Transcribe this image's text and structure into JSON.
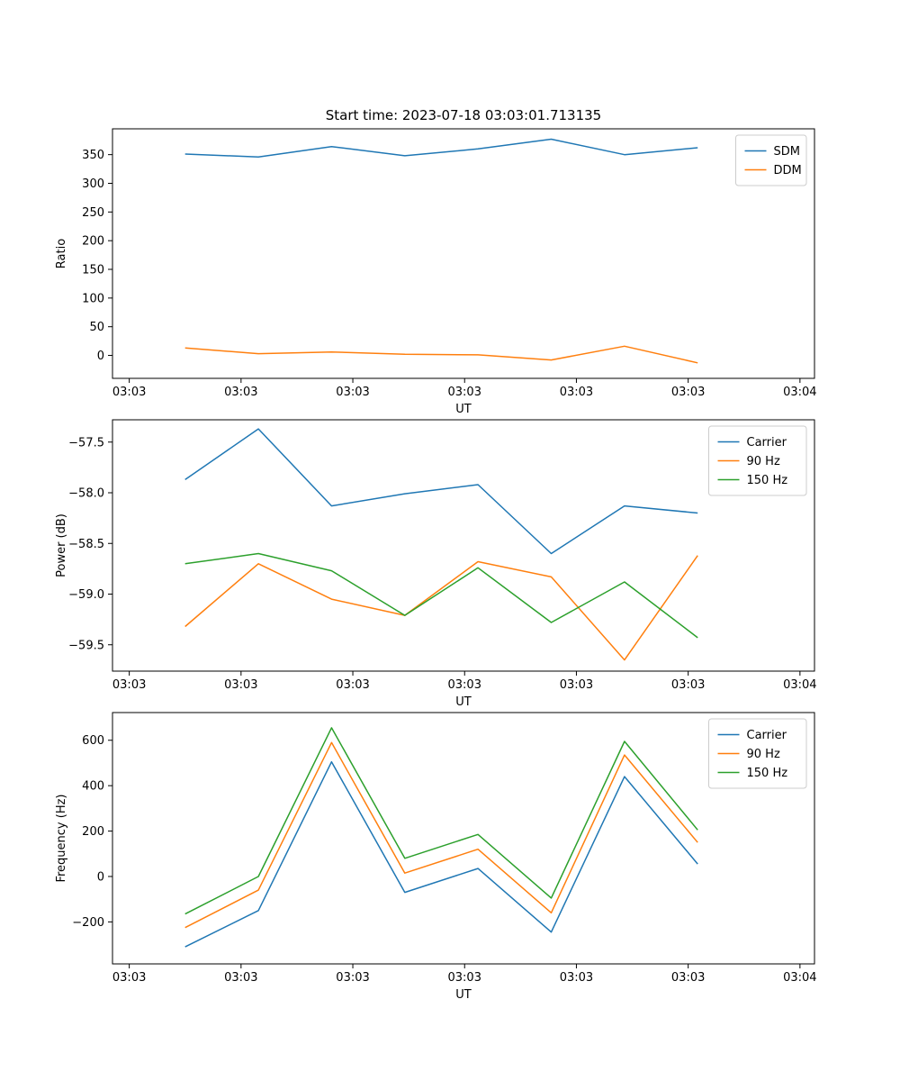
{
  "figure": {
    "background": "#ffffff"
  },
  "colors": {
    "blue": "#1f77b4",
    "orange": "#ff7f0e",
    "green": "#2ca02c",
    "axis": "#000000",
    "legend_border": "#cccccc"
  },
  "chart_data": [
    {
      "type": "line",
      "title": "Start time: 2023-07-18 03:03:01.713135",
      "xlabel": "UT",
      "ylabel": "Ratio",
      "xlim": [
        -1.5,
        61.3
      ],
      "ylim": [
        -40,
        395
      ],
      "xticks": [
        0,
        10,
        20,
        30,
        40,
        50,
        60
      ],
      "xticklabels": [
        "03:03",
        "03:03",
        "03:03",
        "03:03",
        "03:03",
        "03:03",
        "03:04"
      ],
      "yticks": [
        0,
        50,
        100,
        150,
        200,
        250,
        300,
        350
      ],
      "yticklabels": [
        "0",
        "50",
        "100",
        "150",
        "200",
        "250",
        "300",
        "350"
      ],
      "x": [
        5.0,
        11.55,
        18.1,
        24.65,
        31.2,
        37.75,
        44.3,
        50.85
      ],
      "series": [
        {
          "name": "SDM",
          "color": "#1f77b4",
          "values": [
            351,
            346,
            364,
            348,
            360,
            377,
            350,
            362
          ]
        },
        {
          "name": "DDM",
          "color": "#ff7f0e",
          "values": [
            13,
            3,
            6,
            2,
            1,
            -8,
            16,
            -13
          ]
        }
      ],
      "legend": {
        "position": "upper right",
        "labels": [
          "SDM",
          "DDM"
        ]
      },
      "grid": false
    },
    {
      "type": "line",
      "title": "",
      "xlabel": "UT",
      "ylabel": "Power (dB)",
      "xlim": [
        -1.5,
        61.3
      ],
      "ylim": [
        -59.76,
        -57.28
      ],
      "xticks": [
        0,
        10,
        20,
        30,
        40,
        50,
        60
      ],
      "xticklabels": [
        "03:03",
        "03:03",
        "03:03",
        "03:03",
        "03:03",
        "03:03",
        "03:04"
      ],
      "yticks": [
        -57.5,
        -58.0,
        -58.5,
        -59.0,
        -59.5
      ],
      "yticklabels": [
        "−57.5",
        "−58.0",
        "−58.5",
        "−59.0",
        "−59.5"
      ],
      "x": [
        5.0,
        11.55,
        18.1,
        24.65,
        31.2,
        37.75,
        44.3,
        50.85
      ],
      "series": [
        {
          "name": "Carrier",
          "color": "#1f77b4",
          "values": [
            -57.87,
            -57.37,
            -58.13,
            -58.01,
            -57.92,
            -58.6,
            -58.13,
            -58.2
          ]
        },
        {
          "name": "90 Hz",
          "color": "#ff7f0e",
          "values": [
            -59.32,
            -58.7,
            -59.05,
            -59.21,
            -58.68,
            -58.83,
            -59.65,
            -58.62
          ]
        },
        {
          "name": "150 Hz",
          "color": "#2ca02c",
          "values": [
            -58.7,
            -58.6,
            -58.77,
            -59.21,
            -58.74,
            -59.28,
            -58.88,
            -59.43
          ]
        }
      ],
      "legend": {
        "position": "upper right",
        "labels": [
          "Carrier",
          "90 Hz",
          "150 Hz"
        ]
      },
      "grid": false
    },
    {
      "type": "line",
      "title": "",
      "xlabel": "UT",
      "ylabel": "Frequency (Hz)",
      "xlim": [
        -1.5,
        61.3
      ],
      "ylim": [
        -385,
        722
      ],
      "xticks": [
        0,
        10,
        20,
        30,
        40,
        50,
        60
      ],
      "xticklabels": [
        "03:03",
        "03:03",
        "03:03",
        "03:03",
        "03:03",
        "03:03",
        "03:04"
      ],
      "yticks": [
        -200,
        0,
        200,
        400,
        600
      ],
      "yticklabels": [
        "−200",
        "0",
        "200",
        "400",
        "600"
      ],
      "x": [
        5.0,
        11.55,
        18.1,
        24.65,
        31.2,
        37.75,
        44.3,
        50.85
      ],
      "series": [
        {
          "name": "Carrier",
          "color": "#1f77b4",
          "values": [
            -310,
            -150,
            505,
            -70,
            35,
            -245,
            440,
            55
          ]
        },
        {
          "name": "90 Hz",
          "color": "#ff7f0e",
          "values": [
            -225,
            -60,
            590,
            15,
            120,
            -160,
            535,
            150
          ]
        },
        {
          "name": "150 Hz",
          "color": "#2ca02c",
          "values": [
            -165,
            0,
            655,
            80,
            185,
            -95,
            595,
            205
          ]
        }
      ],
      "legend": {
        "position": "upper right",
        "labels": [
          "Carrier",
          "90 Hz",
          "150 Hz"
        ]
      },
      "grid": false
    }
  ]
}
